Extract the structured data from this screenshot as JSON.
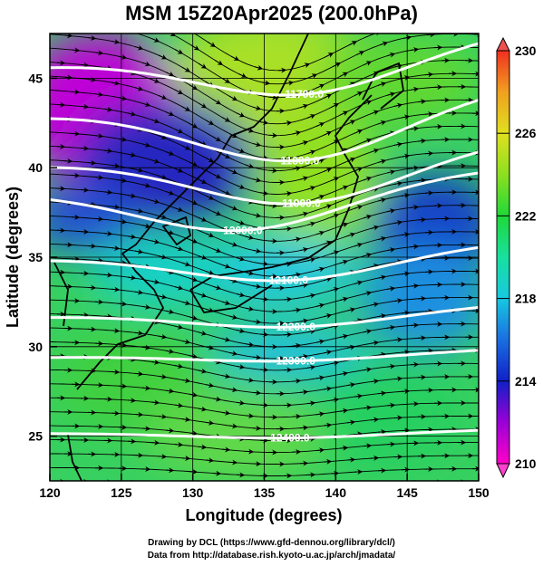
{
  "title": "MSM 15Z20Apr2025 (200.0hPa)",
  "x_axis": {
    "label": "Longitude (degrees)",
    "ticks": [
      "120",
      "125",
      "130",
      "135",
      "140",
      "145",
      "150"
    ],
    "range": [
      120,
      150
    ]
  },
  "y_axis": {
    "label": "Latitude  (degrees)",
    "ticks": [
      "25",
      "30",
      "35",
      "40",
      "45"
    ],
    "range": [
      22.5,
      47.5
    ]
  },
  "colorbar": {
    "ticks": [
      "230",
      "226",
      "222",
      "218",
      "214",
      "210"
    ],
    "range": [
      210,
      230
    ],
    "colors": [
      "#ff00c8",
      "#9b00d6",
      "#1020c8",
      "#1a6ee0",
      "#18c8e0",
      "#18e0a0",
      "#20d838",
      "#8ce020",
      "#e0e020",
      "#f0a020",
      "#f03020"
    ]
  },
  "contours": [
    {
      "label": "11700.0",
      "lon": 137.8,
      "lat": 44.1
    },
    {
      "label": "11800.0",
      "lon": 137.5,
      "lat": 40.4
    },
    {
      "label": "11900.0",
      "lon": 137.6,
      "lat": 38.0
    },
    {
      "label": "12000.0",
      "lon": 133.5,
      "lat": 36.5
    },
    {
      "label": "12100.0",
      "lon": 136.7,
      "lat": 33.7
    },
    {
      "label": "12200.0",
      "lon": 137.2,
      "lat": 31.1
    },
    {
      "label": "12300.0",
      "lon": 137.2,
      "lat": 29.2
    },
    {
      "label": "12400.0",
      "lon": 136.8,
      "lat": 24.9
    }
  ],
  "credits": {
    "line1": "Drawing by DCL (https://www.gfd-dennou.org/library/dcl/)",
    "line2": "Data from http://database.rish.kyoto-u.ac.jp/arch/jmadata/"
  }
}
